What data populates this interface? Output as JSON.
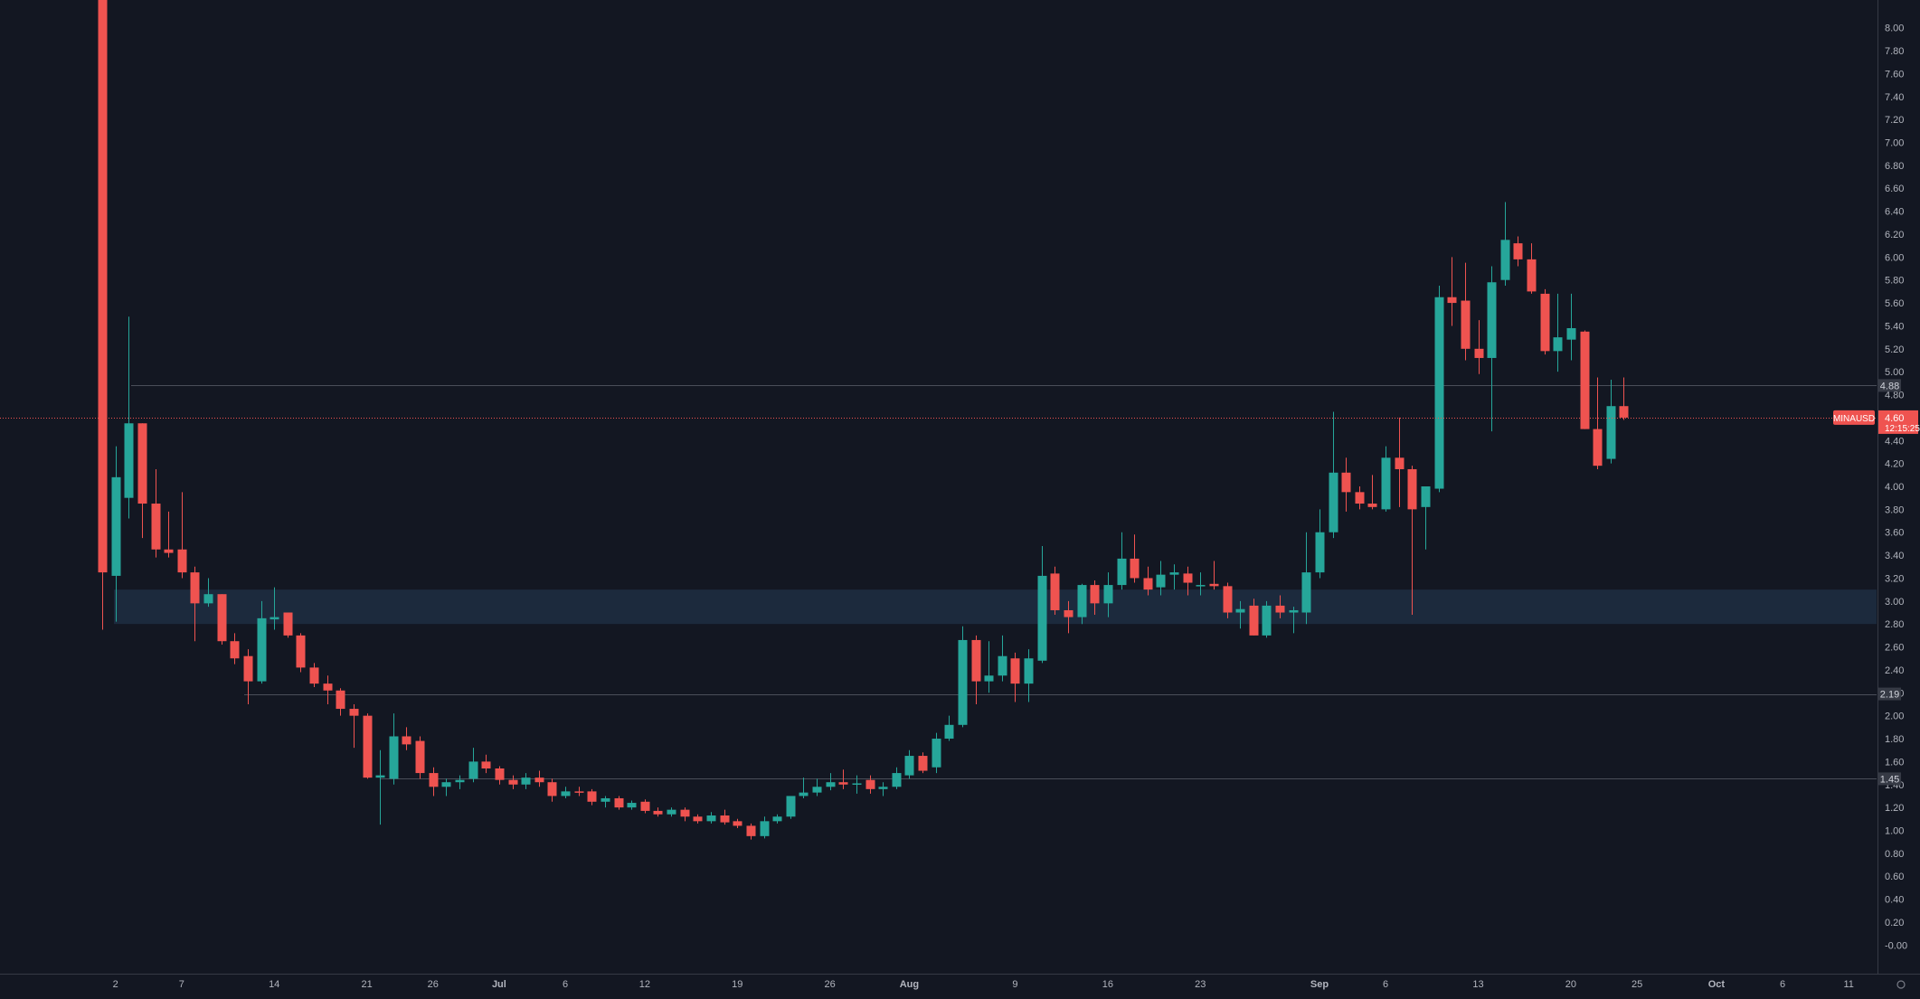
{
  "chart_data": {
    "type": "candlestick",
    "symbol": "MINAUSD",
    "colors": {
      "background": "#131722",
      "up": "#26a69a",
      "down": "#ef5350",
      "zone": "#1c2a3d",
      "grid_axis": "#363a45",
      "text": "#b2b5be",
      "level_line": "#4a4e59"
    },
    "y_axis": {
      "min": -0.1,
      "max": 8.1,
      "ticks": [
        "-0.00",
        "0.20",
        "0.40",
        "0.60",
        "0.80",
        "1.00",
        "1.20",
        "1.40",
        "1.60",
        "1.80",
        "2.00",
        "2.20",
        "2.40",
        "2.60",
        "2.80",
        "3.00",
        "3.20",
        "3.40",
        "3.60",
        "3.80",
        "4.00",
        "4.20",
        "4.40",
        "4.60",
        "4.80",
        "5.00",
        "5.20",
        "5.40",
        "5.60",
        "5.80",
        "6.00",
        "6.20",
        "6.40",
        "6.60",
        "6.80",
        "7.00",
        "7.20",
        "7.40",
        "7.60",
        "7.80",
        "8.00"
      ]
    },
    "x_axis": {
      "start_date": "2021-06-01",
      "labels": [
        {
          "text": "2",
          "date": "2021-06-02"
        },
        {
          "text": "7",
          "date": "2021-06-07"
        },
        {
          "text": "14",
          "date": "2021-06-14"
        },
        {
          "text": "21",
          "date": "2021-06-21"
        },
        {
          "text": "26",
          "date": "2021-06-26"
        },
        {
          "text": "Jul",
          "date": "2021-07-01"
        },
        {
          "text": "6",
          "date": "2021-07-06"
        },
        {
          "text": "12",
          "date": "2021-07-12"
        },
        {
          "text": "19",
          "date": "2021-07-19"
        },
        {
          "text": "26",
          "date": "2021-07-26"
        },
        {
          "text": "Aug",
          "date": "2021-08-01"
        },
        {
          "text": "9",
          "date": "2021-08-09"
        },
        {
          "text": "16",
          "date": "2021-08-16"
        },
        {
          "text": "23",
          "date": "2021-08-23"
        },
        {
          "text": "Sep",
          "date": "2021-09-01"
        },
        {
          "text": "6",
          "date": "2021-09-06"
        },
        {
          "text": "13",
          "date": "2021-09-13"
        },
        {
          "text": "20",
          "date": "2021-09-20"
        },
        {
          "text": "25",
          "date": "2021-09-25"
        },
        {
          "text": "Oct",
          "date": "2021-10-01"
        },
        {
          "text": "6",
          "date": "2021-10-06"
        },
        {
          "text": "11",
          "date": "2021-10-11"
        }
      ]
    },
    "support_zone": {
      "low": 2.8,
      "high": 3.1
    },
    "levels": [
      {
        "price": 4.88,
        "label": "4.88"
      },
      {
        "price": 2.19,
        "label": "2.19"
      },
      {
        "price": 1.45,
        "label": "1.45"
      }
    ],
    "last_price": {
      "price": 4.6,
      "label": "4.60",
      "countdown": "12:15:25"
    },
    "candles": [
      {
        "date": "2021-06-01",
        "o": 9.0,
        "h": 9.2,
        "l": 2.75,
        "c": 3.25
      },
      {
        "date": "2021-06-02",
        "o": 3.22,
        "h": 4.35,
        "l": 2.82,
        "c": 4.08
      },
      {
        "date": "2021-06-03",
        "o": 3.9,
        "h": 5.48,
        "l": 3.72,
        "c": 4.55
      },
      {
        "date": "2021-06-04",
        "o": 4.55,
        "h": 4.55,
        "l": 3.55,
        "c": 3.85
      },
      {
        "date": "2021-06-05",
        "o": 3.85,
        "h": 4.15,
        "l": 3.38,
        "c": 3.45
      },
      {
        "date": "2021-06-06",
        "o": 3.45,
        "h": 3.78,
        "l": 3.38,
        "c": 3.42
      },
      {
        "date": "2021-06-07",
        "o": 3.45,
        "h": 3.95,
        "l": 3.2,
        "c": 3.25
      },
      {
        "date": "2021-06-08",
        "o": 3.25,
        "h": 3.3,
        "l": 2.65,
        "c": 2.98
      },
      {
        "date": "2021-06-09",
        "o": 2.98,
        "h": 3.2,
        "l": 2.95,
        "c": 3.06
      },
      {
        "date": "2021-06-10",
        "o": 3.06,
        "h": 3.06,
        "l": 2.62,
        "c": 2.65
      },
      {
        "date": "2021-06-11",
        "o": 2.65,
        "h": 2.72,
        "l": 2.45,
        "c": 2.5
      },
      {
        "date": "2021-06-12",
        "o": 2.52,
        "h": 2.58,
        "l": 2.1,
        "c": 2.3
      },
      {
        "date": "2021-06-13",
        "o": 2.3,
        "h": 3.0,
        "l": 2.28,
        "c": 2.85
      },
      {
        "date": "2021-06-14",
        "o": 2.84,
        "h": 3.12,
        "l": 2.75,
        "c": 2.86
      },
      {
        "date": "2021-06-15",
        "o": 2.9,
        "h": 2.9,
        "l": 2.68,
        "c": 2.7
      },
      {
        "date": "2021-06-16",
        "o": 2.7,
        "h": 2.72,
        "l": 2.38,
        "c": 2.42
      },
      {
        "date": "2021-06-17",
        "o": 2.42,
        "h": 2.46,
        "l": 2.25,
        "c": 2.28
      },
      {
        "date": "2021-06-18",
        "o": 2.28,
        "h": 2.35,
        "l": 2.1,
        "c": 2.22
      },
      {
        "date": "2021-06-19",
        "o": 2.22,
        "h": 2.24,
        "l": 2.0,
        "c": 2.06
      },
      {
        "date": "2021-06-20",
        "o": 2.06,
        "h": 2.1,
        "l": 1.72,
        "c": 2.0
      },
      {
        "date": "2021-06-21",
        "o": 2.0,
        "h": 2.02,
        "l": 1.45,
        "c": 1.46
      },
      {
        "date": "2021-06-22",
        "o": 1.46,
        "h": 1.7,
        "l": 1.05,
        "c": 1.48
      },
      {
        "date": "2021-06-23",
        "o": 1.45,
        "h": 2.02,
        "l": 1.4,
        "c": 1.82
      },
      {
        "date": "2021-06-24",
        "o": 1.82,
        "h": 1.9,
        "l": 1.7,
        "c": 1.75
      },
      {
        "date": "2021-06-25",
        "o": 1.78,
        "h": 1.82,
        "l": 1.45,
        "c": 1.5
      },
      {
        "date": "2021-06-26",
        "o": 1.5,
        "h": 1.55,
        "l": 1.3,
        "c": 1.38
      },
      {
        "date": "2021-06-27",
        "o": 1.38,
        "h": 1.45,
        "l": 1.3,
        "c": 1.42
      },
      {
        "date": "2021-06-28",
        "o": 1.42,
        "h": 1.48,
        "l": 1.36,
        "c": 1.44
      },
      {
        "date": "2021-06-29",
        "o": 1.45,
        "h": 1.72,
        "l": 1.42,
        "c": 1.6
      },
      {
        "date": "2021-06-30",
        "o": 1.6,
        "h": 1.66,
        "l": 1.5,
        "c": 1.54
      },
      {
        "date": "2021-07-01",
        "o": 1.54,
        "h": 1.56,
        "l": 1.4,
        "c": 1.44
      },
      {
        "date": "2021-07-02",
        "o": 1.44,
        "h": 1.48,
        "l": 1.36,
        "c": 1.4
      },
      {
        "date": "2021-07-03",
        "o": 1.4,
        "h": 1.5,
        "l": 1.36,
        "c": 1.46
      },
      {
        "date": "2021-07-04",
        "o": 1.46,
        "h": 1.52,
        "l": 1.38,
        "c": 1.42
      },
      {
        "date": "2021-07-05",
        "o": 1.42,
        "h": 1.45,
        "l": 1.25,
        "c": 1.3
      },
      {
        "date": "2021-07-06",
        "o": 1.3,
        "h": 1.38,
        "l": 1.28,
        "c": 1.34
      },
      {
        "date": "2021-07-07",
        "o": 1.34,
        "h": 1.38,
        "l": 1.3,
        "c": 1.33
      },
      {
        "date": "2021-07-08",
        "o": 1.34,
        "h": 1.36,
        "l": 1.22,
        "c": 1.25
      },
      {
        "date": "2021-07-09",
        "o": 1.25,
        "h": 1.3,
        "l": 1.2,
        "c": 1.28
      },
      {
        "date": "2021-07-10",
        "o": 1.28,
        "h": 1.3,
        "l": 1.18,
        "c": 1.2
      },
      {
        "date": "2021-07-11",
        "o": 1.2,
        "h": 1.26,
        "l": 1.18,
        "c": 1.24
      },
      {
        "date": "2021-07-12",
        "o": 1.25,
        "h": 1.27,
        "l": 1.15,
        "c": 1.17
      },
      {
        "date": "2021-07-13",
        "o": 1.17,
        "h": 1.2,
        "l": 1.12,
        "c": 1.14
      },
      {
        "date": "2021-07-14",
        "o": 1.14,
        "h": 1.2,
        "l": 1.12,
        "c": 1.18
      },
      {
        "date": "2021-07-15",
        "o": 1.18,
        "h": 1.2,
        "l": 1.08,
        "c": 1.12
      },
      {
        "date": "2021-07-16",
        "o": 1.12,
        "h": 1.14,
        "l": 1.06,
        "c": 1.08
      },
      {
        "date": "2021-07-17",
        "o": 1.08,
        "h": 1.16,
        "l": 1.06,
        "c": 1.13
      },
      {
        "date": "2021-07-18",
        "o": 1.13,
        "h": 1.18,
        "l": 1.05,
        "c": 1.07
      },
      {
        "date": "2021-07-19",
        "o": 1.08,
        "h": 1.1,
        "l": 1.02,
        "c": 1.04
      },
      {
        "date": "2021-07-20",
        "o": 1.04,
        "h": 1.06,
        "l": 0.92,
        "c": 0.95
      },
      {
        "date": "2021-07-21",
        "o": 0.95,
        "h": 1.12,
        "l": 0.93,
        "c": 1.08
      },
      {
        "date": "2021-07-22",
        "o": 1.08,
        "h": 1.14,
        "l": 1.06,
        "c": 1.12
      },
      {
        "date": "2021-07-23",
        "o": 1.12,
        "h": 1.3,
        "l": 1.1,
        "c": 1.3
      },
      {
        "date": "2021-07-24",
        "o": 1.3,
        "h": 1.46,
        "l": 1.28,
        "c": 1.33
      },
      {
        "date": "2021-07-25",
        "o": 1.33,
        "h": 1.45,
        "l": 1.3,
        "c": 1.38
      },
      {
        "date": "2021-07-26",
        "o": 1.38,
        "h": 1.5,
        "l": 1.35,
        "c": 1.42
      },
      {
        "date": "2021-07-27",
        "o": 1.42,
        "h": 1.53,
        "l": 1.36,
        "c": 1.4
      },
      {
        "date": "2021-07-28",
        "o": 1.4,
        "h": 1.48,
        "l": 1.32,
        "c": 1.41
      },
      {
        "date": "2021-07-29",
        "o": 1.44,
        "h": 1.48,
        "l": 1.32,
        "c": 1.36
      },
      {
        "date": "2021-07-30",
        "o": 1.36,
        "h": 1.42,
        "l": 1.3,
        "c": 1.38
      },
      {
        "date": "2021-07-31",
        "o": 1.38,
        "h": 1.55,
        "l": 1.36,
        "c": 1.5
      },
      {
        "date": "2021-08-01",
        "o": 1.48,
        "h": 1.7,
        "l": 1.45,
        "c": 1.65
      },
      {
        "date": "2021-08-02",
        "o": 1.65,
        "h": 1.68,
        "l": 1.5,
        "c": 1.52
      },
      {
        "date": "2021-08-03",
        "o": 1.55,
        "h": 1.85,
        "l": 1.5,
        "c": 1.8
      },
      {
        "date": "2021-08-04",
        "o": 1.8,
        "h": 2.0,
        "l": 1.78,
        "c": 1.92
      },
      {
        "date": "2021-08-05",
        "o": 1.92,
        "h": 2.78,
        "l": 1.9,
        "c": 2.66
      },
      {
        "date": "2021-08-06",
        "o": 2.66,
        "h": 2.7,
        "l": 2.1,
        "c": 2.3
      },
      {
        "date": "2021-08-07",
        "o": 2.3,
        "h": 2.65,
        "l": 2.2,
        "c": 2.35
      },
      {
        "date": "2021-08-08",
        "o": 2.35,
        "h": 2.7,
        "l": 2.3,
        "c": 2.52
      },
      {
        "date": "2021-08-09",
        "o": 2.5,
        "h": 2.55,
        "l": 2.12,
        "c": 2.28
      },
      {
        "date": "2021-08-10",
        "o": 2.28,
        "h": 2.58,
        "l": 2.12,
        "c": 2.5
      },
      {
        "date": "2021-08-11",
        "o": 2.48,
        "h": 3.48,
        "l": 2.46,
        "c": 3.22
      },
      {
        "date": "2021-08-12",
        "o": 3.24,
        "h": 3.3,
        "l": 2.88,
        "c": 2.92
      },
      {
        "date": "2021-08-13",
        "o": 2.92,
        "h": 3.0,
        "l": 2.72,
        "c": 2.86
      },
      {
        "date": "2021-08-14",
        "o": 2.86,
        "h": 3.15,
        "l": 2.8,
        "c": 3.14
      },
      {
        "date": "2021-08-15",
        "o": 3.14,
        "h": 3.18,
        "l": 2.88,
        "c": 2.98
      },
      {
        "date": "2021-08-16",
        "o": 2.98,
        "h": 3.25,
        "l": 2.86,
        "c": 3.14
      },
      {
        "date": "2021-08-17",
        "o": 3.14,
        "h": 3.6,
        "l": 3.1,
        "c": 3.37
      },
      {
        "date": "2021-08-18",
        "o": 3.37,
        "h": 3.58,
        "l": 3.16,
        "c": 3.2
      },
      {
        "date": "2021-08-19",
        "o": 3.2,
        "h": 3.3,
        "l": 3.05,
        "c": 3.1
      },
      {
        "date": "2021-08-20",
        "o": 3.12,
        "h": 3.35,
        "l": 3.05,
        "c": 3.23
      },
      {
        "date": "2021-08-21",
        "o": 3.23,
        "h": 3.32,
        "l": 3.1,
        "c": 3.25
      },
      {
        "date": "2021-08-22",
        "o": 3.24,
        "h": 3.3,
        "l": 3.05,
        "c": 3.16
      },
      {
        "date": "2021-08-23",
        "o": 3.14,
        "h": 3.25,
        "l": 3.05,
        "c": 3.14
      },
      {
        "date": "2021-08-24",
        "o": 3.15,
        "h": 3.35,
        "l": 3.1,
        "c": 3.13
      },
      {
        "date": "2021-08-25",
        "o": 3.13,
        "h": 3.16,
        "l": 2.85,
        "c": 2.9
      },
      {
        "date": "2021-08-26",
        "o": 2.9,
        "h": 3.0,
        "l": 2.76,
        "c": 2.93
      },
      {
        "date": "2021-08-27",
        "o": 2.96,
        "h": 3.02,
        "l": 2.7,
        "c": 2.7
      },
      {
        "date": "2021-08-28",
        "o": 2.7,
        "h": 3.0,
        "l": 2.68,
        "c": 2.96
      },
      {
        "date": "2021-08-29",
        "o": 2.96,
        "h": 3.05,
        "l": 2.85,
        "c": 2.9
      },
      {
        "date": "2021-08-30",
        "o": 2.9,
        "h": 2.95,
        "l": 2.72,
        "c": 2.92
      },
      {
        "date": "2021-08-31",
        "o": 2.9,
        "h": 3.6,
        "l": 2.8,
        "c": 3.25
      },
      {
        "date": "2021-09-01",
        "o": 3.25,
        "h": 3.8,
        "l": 3.2,
        "c": 3.6
      },
      {
        "date": "2021-09-02",
        "o": 3.6,
        "h": 4.65,
        "l": 3.55,
        "c": 4.12
      },
      {
        "date": "2021-09-03",
        "o": 4.12,
        "h": 4.25,
        "l": 3.78,
        "c": 3.95
      },
      {
        "date": "2021-09-04",
        "o": 3.95,
        "h": 4.0,
        "l": 3.8,
        "c": 3.85
      },
      {
        "date": "2021-09-05",
        "o": 3.85,
        "h": 4.1,
        "l": 3.8,
        "c": 3.82
      },
      {
        "date": "2021-09-06",
        "o": 3.8,
        "h": 4.35,
        "l": 3.78,
        "c": 4.25
      },
      {
        "date": "2021-09-07",
        "o": 4.25,
        "h": 4.6,
        "l": 3.82,
        "c": 4.15
      },
      {
        "date": "2021-09-08",
        "o": 4.15,
        "h": 4.18,
        "l": 2.88,
        "c": 3.8
      },
      {
        "date": "2021-09-09",
        "o": 3.82,
        "h": 4.0,
        "l": 3.45,
        "c": 4.0
      },
      {
        "date": "2021-09-10",
        "o": 3.98,
        "h": 5.75,
        "l": 3.95,
        "c": 5.65
      },
      {
        "date": "2021-09-11",
        "o": 5.65,
        "h": 6.0,
        "l": 5.4,
        "c": 5.6
      },
      {
        "date": "2021-09-12",
        "o": 5.62,
        "h": 5.95,
        "l": 5.1,
        "c": 5.2
      },
      {
        "date": "2021-09-13",
        "o": 5.2,
        "h": 5.45,
        "l": 4.98,
        "c": 5.12
      },
      {
        "date": "2021-09-14",
        "o": 5.12,
        "h": 5.92,
        "l": 4.48,
        "c": 5.78
      },
      {
        "date": "2021-09-15",
        "o": 5.8,
        "h": 6.48,
        "l": 5.75,
        "c": 6.15
      },
      {
        "date": "2021-09-16",
        "o": 6.12,
        "h": 6.18,
        "l": 5.92,
        "c": 5.98
      },
      {
        "date": "2021-09-17",
        "o": 5.98,
        "h": 6.12,
        "l": 5.68,
        "c": 5.7
      },
      {
        "date": "2021-09-18",
        "o": 5.68,
        "h": 5.72,
        "l": 5.15,
        "c": 5.18
      },
      {
        "date": "2021-09-19",
        "o": 5.18,
        "h": 5.68,
        "l": 5.0,
        "c": 5.3
      },
      {
        "date": "2021-09-20",
        "o": 5.28,
        "h": 5.68,
        "l": 5.1,
        "c": 5.38
      },
      {
        "date": "2021-09-21",
        "o": 5.35,
        "h": 5.36,
        "l": 4.5,
        "c": 4.5
      },
      {
        "date": "2021-09-22",
        "o": 4.5,
        "h": 4.95,
        "l": 4.15,
        "c": 4.18
      },
      {
        "date": "2021-09-23",
        "o": 4.24,
        "h": 4.93,
        "l": 4.2,
        "c": 4.7
      },
      {
        "date": "2021-09-24",
        "o": 4.7,
        "h": 4.95,
        "l": 4.58,
        "c": 4.6
      }
    ]
  }
}
